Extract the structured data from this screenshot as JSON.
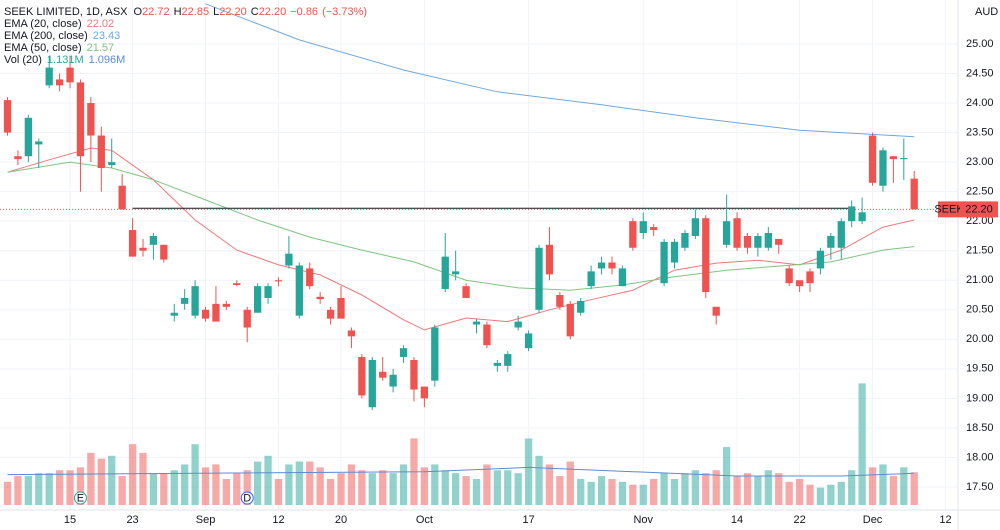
{
  "chart_data": {
    "type": "candlestick",
    "header": {
      "symbol": "SEEK LIMITED, 1D, ASX",
      "ohlc": [
        {
          "key": "O",
          "value": 22.72
        },
        {
          "key": "H",
          "value": 22.85
        },
        {
          "key": "L",
          "value": {
            "value": 22.2,
            "label": "22.20"
          }
        },
        {
          "key": "C",
          "value": {
            "value": 22.2,
            "label": "22.20"
          }
        }
      ],
      "change": {
        "value": -0.86,
        "label": "−0.86"
      },
      "change_pct": {
        "value": -3.73,
        "label": "(−3.73%)"
      }
    },
    "currency": "AUD",
    "symbol_tag": "SEEK",
    "last_price": {
      "value": 22.2,
      "label": "22.20"
    },
    "up_color": "#26a69a",
    "down_color": "#ef5350",
    "xlim": [
      -0.72,
      91.2
    ],
    "ylim": [
      17.11,
      25.745
    ],
    "volume_lim": [
      0,
      4.8
    ],
    "yticks": [
      {
        "value": 17.5,
        "label": "17.50"
      },
      {
        "value": 18,
        "label": "18.00"
      },
      {
        "value": 18.5,
        "label": "18.50"
      },
      {
        "value": 19,
        "label": "19.00"
      },
      {
        "value": 19.5,
        "label": "19.50"
      },
      {
        "value": 20,
        "label": "20.00"
      },
      {
        "value": 20.5,
        "label": "20.50"
      },
      {
        "value": 21,
        "label": "21.00"
      },
      {
        "value": 21.5,
        "label": "21.50"
      },
      {
        "value": 22,
        "label": "22.00"
      },
      {
        "value": 22.5,
        "label": "22.50"
      },
      {
        "value": 23,
        "label": "23.00"
      },
      {
        "value": 23.5,
        "label": "23.50"
      },
      {
        "value": 24,
        "label": "24.00"
      },
      {
        "value": 24.5,
        "label": "24.50"
      },
      {
        "value": 25,
        "label": "25.00"
      }
    ],
    "xticks": [
      {
        "value": 6,
        "label": "15"
      },
      {
        "value": 12,
        "label": "23"
      },
      {
        "value": 19,
        "label": "Sep"
      },
      {
        "value": 26,
        "label": "12"
      },
      {
        "value": 32,
        "label": "20"
      },
      {
        "value": 40,
        "label": "Oct"
      },
      {
        "value": 50,
        "label": "17"
      },
      {
        "value": 61,
        "label": "Nov"
      },
      {
        "value": 70,
        "label": "14"
      },
      {
        "value": 76,
        "label": "22"
      },
      {
        "value": 83,
        "label": "Dec"
      },
      {
        "value": 90,
        "label": "12"
      }
    ],
    "open": [
      24.05,
      23.1,
      23.1,
      23.3,
      24.3,
      24.4,
      24.6,
      24.35,
      24.0,
      23.45,
      22.95,
      22.6,
      21.85,
      21.55,
      21.6,
      21.6,
      20.4,
      20.6,
      20.4,
      20.5,
      20.6,
      20.6,
      20.95,
      20.5,
      20.45,
      20.7,
      21.0,
      21.25,
      20.4,
      21.2,
      20.72,
      20.5,
      20.7,
      20.15,
      19.7,
      18.85,
      19.45,
      19.2,
      19.7,
      19.65,
      19.2,
      19.3,
      20.85,
      21.1,
      20.9,
      20.25,
      20.25,
      19.55,
      19.55,
      20.2,
      19.85,
      20.5,
      21.6,
      20.75,
      20.6,
      20.45,
      20.9,
      21.2,
      21.3,
      20.9,
      22.0,
      21.8,
      21.9,
      20.95,
      21.3,
      21.55,
      21.75,
      22.05,
      20.55,
      21.6,
      22.05,
      21.75,
      21.55,
      21.55,
      21.7,
      21.2,
      21.0,
      21.15,
      21.2,
      21.55,
      21.55,
      22.0,
      22.0,
      23.45,
      22.6,
      23.1,
      23.05,
      22.72
    ],
    "high": [
      24.1,
      23.2,
      23.8,
      23.4,
      24.8,
      24.5,
      24.8,
      24.4,
      24.1,
      23.6,
      23.4,
      22.8,
      22.05,
      21.7,
      21.8,
      21.6,
      20.6,
      20.85,
      21.0,
      20.55,
      20.9,
      20.65,
      21.0,
      20.55,
      20.95,
      20.95,
      21.05,
      21.75,
      21.3,
      21.3,
      20.8,
      20.55,
      20.9,
      20.2,
      19.75,
      19.7,
      19.7,
      19.5,
      19.9,
      19.7,
      19.2,
      20.25,
      21.8,
      21.5,
      20.95,
      20.35,
      20.3,
      19.65,
      19.8,
      20.4,
      20.15,
      21.6,
      21.9,
      20.8,
      20.65,
      20.7,
      21.25,
      21.4,
      21.4,
      21.25,
      22.05,
      22.15,
      21.95,
      21.7,
      21.7,
      21.85,
      22.2,
      22.1,
      20.55,
      22.45,
      22.15,
      21.8,
      21.8,
      21.9,
      21.7,
      21.25,
      21.0,
      21.2,
      21.55,
      21.8,
      22.05,
      22.35,
      22.4,
      23.5,
      23.25,
      23.1,
      23.4,
      22.85
    ],
    "low": [
      23.45,
      22.95,
      23.0,
      22.9,
      24.25,
      24.2,
      24.25,
      22.5,
      23.0,
      22.5,
      22.9,
      22.2,
      21.4,
      21.4,
      21.35,
      21.3,
      20.3,
      20.5,
      20.35,
      20.3,
      20.3,
      20.5,
      20.9,
      19.95,
      20.45,
      20.6,
      20.9,
      21.2,
      20.35,
      20.85,
      20.6,
      20.25,
      20.35,
      19.85,
      19.0,
      18.8,
      19.3,
      19.1,
      19.6,
      18.95,
      18.85,
      19.2,
      20.8,
      21.0,
      20.7,
      20.1,
      19.85,
      19.45,
      19.45,
      20.15,
      19.8,
      20.45,
      21.0,
      20.5,
      20.0,
      20.4,
      20.85,
      21.1,
      21.1,
      20.9,
      21.5,
      21.7,
      21.75,
      20.9,
      21.2,
      21.5,
      21.7,
      20.7,
      20.25,
      21.55,
      21.5,
      21.45,
      21.4,
      21.5,
      21.45,
      20.9,
      20.8,
      20.8,
      21.1,
      21.35,
      21.35,
      21.9,
      21.95,
      22.6,
      22.5,
      22.65,
      22.7,
      22.2
    ],
    "close": [
      23.5,
      23.05,
      23.75,
      23.35,
      24.6,
      24.3,
      24.35,
      23.1,
      23.45,
      22.9,
      23.0,
      22.2,
      21.4,
      21.5,
      21.75,
      21.35,
      20.45,
      20.7,
      20.9,
      20.35,
      20.3,
      20.55,
      20.92,
      20.2,
      20.9,
      20.9,
      20.98,
      21.45,
      21.25,
      20.9,
      20.68,
      20.35,
      20.35,
      20.05,
      19.05,
      19.65,
      19.35,
      19.4,
      19.85,
      19.15,
      19.0,
      20.2,
      21.4,
      21.15,
      20.7,
      20.3,
      19.9,
      19.6,
      19.75,
      20.3,
      20.1,
      21.55,
      21.1,
      20.55,
      20.05,
      20.65,
      21.15,
      21.3,
      21.2,
      21.2,
      21.55,
      22.0,
      21.85,
      21.65,
      21.65,
      21.8,
      22.05,
      20.8,
      20.4,
      22.0,
      21.55,
      21.55,
      21.75,
      21.8,
      21.6,
      20.95,
      20.9,
      20.95,
      21.5,
      21.75,
      22.0,
      22.25,
      22.15,
      22.65,
      23.2,
      23.05,
      23.07,
      22.2
    ],
    "volume": [
      0.8,
      1.0,
      1.0,
      1.1,
      1.1,
      1.2,
      1.2,
      1.3,
      1.8,
      1.6,
      1.7,
      1.0,
      2.1,
      1.8,
      1.1,
      1.1,
      1.2,
      1.4,
      2.1,
      1.3,
      1.4,
      0.9,
      1.1,
      1.2,
      1.5,
      1.7,
      0.9,
      1.4,
      1.5,
      1.5,
      1.3,
      0.9,
      1.1,
      1.4,
      1.2,
      1.1,
      1.2,
      1.1,
      1.4,
      2.3,
      1.3,
      1.4,
      1.2,
      1.1,
      1.0,
      0.9,
      1.4,
      1.2,
      1.2,
      1.1,
      2.3,
      1.7,
      1.4,
      1.0,
      1.5,
      0.9,
      0.8,
      1.0,
      0.9,
      0.8,
      0.7,
      0.7,
      0.9,
      1.1,
      0.9,
      1.1,
      1.2,
      1.1,
      1.2,
      2.0,
      1.0,
      1.1,
      1.0,
      1.2,
      1.1,
      0.8,
      0.9,
      0.7,
      0.6,
      0.7,
      0.8,
      1.2,
      4.2,
      1.3,
      1.4,
      1.0,
      1.3,
      1.131
    ],
    "indicators": [
      {
        "name": "EMA (20, close)",
        "value": 22.02,
        "color": "#f0777a",
        "x": [
          0,
          4,
          8,
          10,
          14,
          18,
          22,
          26,
          30,
          34,
          38,
          40,
          44,
          48,
          52,
          56,
          60,
          64,
          68,
          72,
          76,
          80,
          84,
          87
        ],
        "values": [
          22.83,
          23.04,
          23.24,
          23.2,
          22.7,
          22.02,
          21.51,
          21.26,
          21.09,
          20.75,
          20.33,
          20.16,
          20.36,
          20.3,
          20.5,
          20.67,
          20.83,
          21.17,
          21.29,
          21.34,
          21.26,
          21.51,
          21.9,
          22.02
        ]
      },
      {
        "name": "EMA (200, close)",
        "value": 23.43,
        "color": "#6fa8dc",
        "x": [
          19,
          28,
          38,
          47,
          57,
          66,
          76,
          87
        ],
        "values": [
          25.68,
          25.07,
          24.56,
          24.19,
          23.97,
          23.75,
          23.54,
          23.43
        ]
      },
      {
        "name": "EMA (50, close)",
        "value": 21.57,
        "color": "#7fc47f",
        "x": [
          0,
          6,
          10,
          14,
          19,
          24,
          29,
          34,
          39,
          44,
          49,
          54,
          59,
          64,
          69,
          74,
          79,
          84,
          87
        ],
        "values": [
          22.83,
          23.0,
          22.9,
          22.7,
          22.36,
          22.02,
          21.73,
          21.51,
          21.31,
          21.0,
          20.87,
          20.83,
          20.92,
          21.06,
          21.17,
          21.24,
          21.31,
          21.51,
          21.57
        ]
      }
    ],
    "volume_indicator": {
      "name": "Vol (20)",
      "volume": {
        "value": 1.131,
        "label": "1.131M"
      },
      "average": {
        "value": 1.096,
        "label": "1.096M"
      },
      "color": "#5b8bd6",
      "x": [
        0,
        20,
        40,
        50,
        60,
        70,
        80,
        87
      ],
      "values": [
        1.05,
        1.1,
        1.15,
        1.3,
        1.15,
        1.0,
        1.0,
        1.096
      ]
    },
    "hline": {
      "value": 22.22,
      "x": [
        12,
        81
      ]
    },
    "events": [
      {
        "label": "E",
        "x": 7
      },
      {
        "label": "D",
        "x": 23
      }
    ]
  }
}
